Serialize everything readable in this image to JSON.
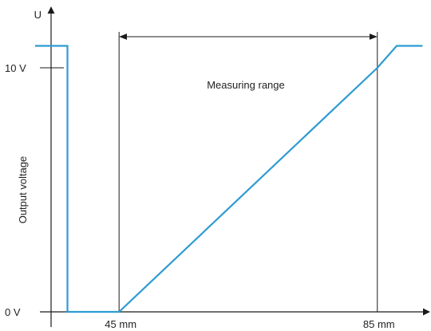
{
  "chart_data": {
    "type": "line",
    "title": "",
    "xlabel": "",
    "ylabel": "Output voltage",
    "y_axis_symbol": "U",
    "x_ticks": [
      {
        "value": 45,
        "label": "45 mm"
      },
      {
        "value": 85,
        "label": "85 mm"
      }
    ],
    "y_ticks": [
      {
        "value": 0,
        "label": "0 V"
      },
      {
        "value": 10,
        "label": "10 V"
      }
    ],
    "annotation": {
      "text": "Measuring range",
      "from": 45,
      "to": 85
    },
    "series": [
      {
        "color": "#2e9bd2",
        "points": [
          {
            "x": 32,
            "y": 10.9
          },
          {
            "x": 37,
            "y": 10.9
          },
          {
            "x": 37,
            "y": 0
          },
          {
            "x": 45,
            "y": 0
          },
          {
            "x": 85,
            "y": 10.0
          },
          {
            "x": 88,
            "y": 10.9
          },
          {
            "x": 92,
            "y": 10.9
          }
        ]
      }
    ],
    "xlim": [
      32,
      92
    ],
    "ylim": [
      0,
      12
    ],
    "grid": false,
    "legend": "none"
  }
}
